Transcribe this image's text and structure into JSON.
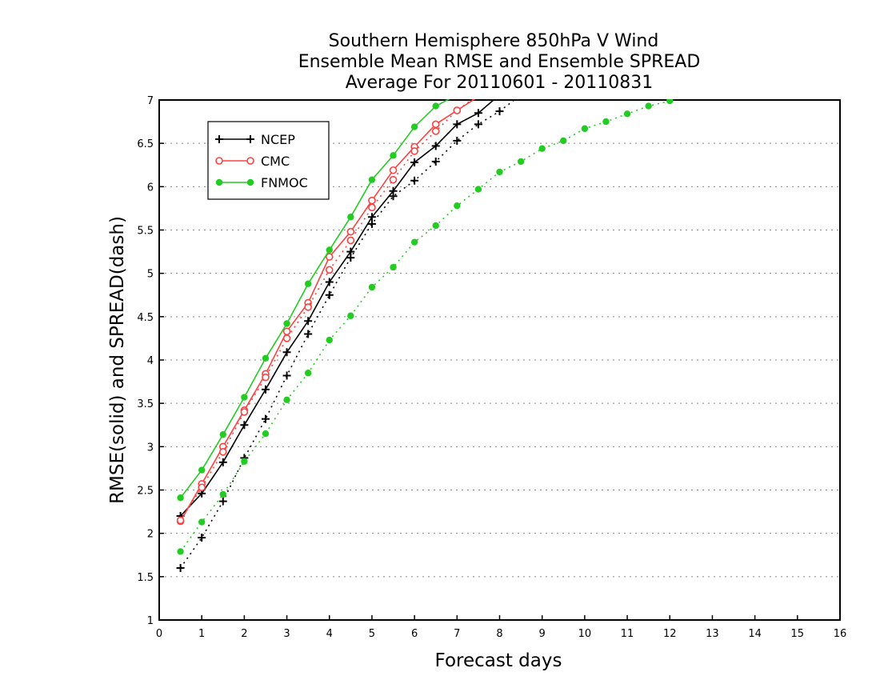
{
  "chart_data": {
    "type": "line",
    "title": [
      "Southern Hemisphere 850hPa V Wind",
      "Ensemble Mean RMSE and Ensemble SPREAD",
      "Average For 20110601 - 20110831"
    ],
    "xlabel": "Forecast days",
    "ylabel": "RMSE(solid) and SPREAD(dash)",
    "xlim": [
      0,
      16
    ],
    "ylim": [
      1,
      7
    ],
    "xticks": [
      "0",
      "1",
      "2",
      "3",
      "4",
      "5",
      "6",
      "7",
      "8",
      "9",
      "10",
      "11",
      "12",
      "13",
      "14",
      "15",
      "16"
    ],
    "yticks": [
      "1",
      "1.5",
      "2",
      "2.5",
      "3",
      "3.5",
      "4",
      "4.5",
      "5",
      "5.5",
      "6",
      "6.5",
      "7"
    ],
    "grid": "horizontal dotted",
    "legend_position": "top-left",
    "x": [
      0.5,
      1,
      1.5,
      2,
      2.5,
      3,
      3.5,
      4,
      4.5,
      5,
      5.5,
      6,
      6.5,
      7,
      7.5,
      8,
      8.5,
      9,
      9.5,
      10,
      10.5,
      11,
      11.5,
      12
    ],
    "series": [
      {
        "name": "NCEP",
        "metric": "RMSE",
        "style": "solid",
        "color": "#000000",
        "marker": "plus",
        "values": [
          2.2,
          2.46,
          2.82,
          3.25,
          3.66,
          4.09,
          4.45,
          4.9,
          5.25,
          5.65,
          5.95,
          6.28,
          6.47,
          6.72,
          6.85,
          7.06,
          null,
          null,
          null,
          null,
          null,
          null,
          null,
          null
        ]
      },
      {
        "name": "NCEP",
        "metric": "SPREAD",
        "style": "dash",
        "color": "#000000",
        "marker": "plus",
        "values": [
          1.6,
          1.95,
          2.37,
          2.87,
          3.32,
          3.82,
          4.3,
          4.75,
          5.18,
          5.57,
          5.89,
          6.07,
          6.29,
          6.53,
          6.72,
          6.87,
          7.06,
          null,
          null,
          null,
          null,
          null,
          null,
          null
        ]
      },
      {
        "name": "CMC",
        "metric": "RMSE",
        "style": "solid",
        "color": "#ff4040",
        "marker": "open-circle",
        "values": [
          2.14,
          2.57,
          3.0,
          3.42,
          3.84,
          4.33,
          4.66,
          5.19,
          5.48,
          5.84,
          6.19,
          6.46,
          6.72,
          6.88,
          7.04,
          null,
          null,
          null,
          null,
          null,
          null,
          null,
          null,
          null
        ]
      },
      {
        "name": "CMC",
        "metric": "SPREAD",
        "style": "dash",
        "color": "#ff4040",
        "marker": "open-circle",
        "values": [
          2.15,
          2.53,
          2.94,
          3.4,
          3.8,
          4.25,
          4.61,
          5.04,
          5.38,
          5.76,
          6.08,
          6.41,
          6.64,
          6.88,
          7.06,
          null,
          null,
          null,
          null,
          null,
          null,
          null,
          null,
          null
        ]
      },
      {
        "name": "FNMOC",
        "metric": "RMSE",
        "style": "solid",
        "color": "#22cc22",
        "marker": "filled-circle",
        "values": [
          2.41,
          2.73,
          3.14,
          3.57,
          4.02,
          4.42,
          4.88,
          5.27,
          5.65,
          6.08,
          6.36,
          6.69,
          6.93,
          7.06,
          null,
          null,
          null,
          null,
          null,
          null,
          null,
          null,
          null,
          null
        ]
      },
      {
        "name": "FNMOC",
        "metric": "SPREAD",
        "style": "dash",
        "color": "#22cc22",
        "marker": "filled-circle",
        "values": [
          1.79,
          2.13,
          2.45,
          2.83,
          3.15,
          3.54,
          3.85,
          4.23,
          4.51,
          4.84,
          5.07,
          5.36,
          5.55,
          5.78,
          5.97,
          6.17,
          6.29,
          6.44,
          6.53,
          6.67,
          6.75,
          6.84,
          6.93,
          6.99
        ]
      }
    ],
    "legend": [
      {
        "name": "NCEP",
        "color": "#000000",
        "marker": "plus"
      },
      {
        "name": "CMC",
        "color": "#ff4040",
        "marker": "open-circle"
      },
      {
        "name": "FNMOC",
        "color": "#22cc22",
        "marker": "filled-circle"
      }
    ]
  }
}
